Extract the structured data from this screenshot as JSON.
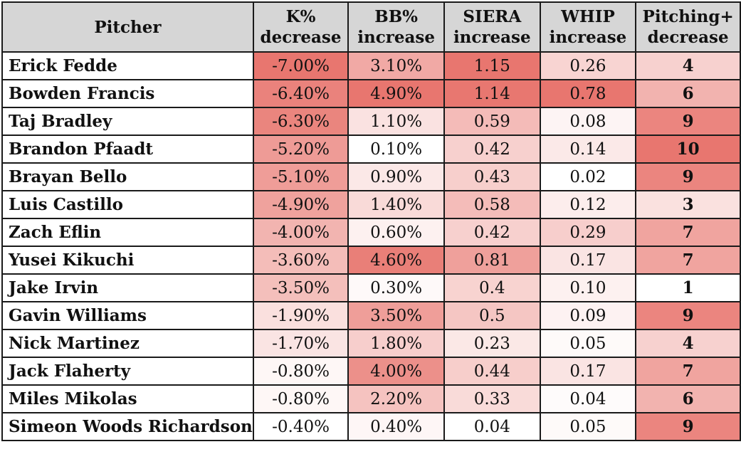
{
  "chart_data": {
    "type": "table",
    "columns": [
      {
        "key": "pitcher",
        "label_lines": [
          "Pitcher"
        ]
      },
      {
        "key": "k_pct_decrease",
        "label_lines": [
          "K%",
          "decrease"
        ]
      },
      {
        "key": "bb_pct_increase",
        "label_lines": [
          "BB%",
          "increase"
        ]
      },
      {
        "key": "siera_increase",
        "label_lines": [
          "SIERA",
          "increase"
        ]
      },
      {
        "key": "whip_increase",
        "label_lines": [
          "WHIP",
          "increase"
        ]
      },
      {
        "key": "pitching_plus_decrease",
        "label_lines": [
          "Pitching+",
          "decrease"
        ]
      }
    ],
    "rows": [
      {
        "pitcher": "Erick Fedde",
        "k_pct_decrease": "-7.00%",
        "bb_pct_increase": "3.10%",
        "siera_increase": "1.15",
        "whip_increase": "0.26",
        "pitching_plus_decrease": "4"
      },
      {
        "pitcher": "Bowden Francis",
        "k_pct_decrease": "-6.40%",
        "bb_pct_increase": "4.90%",
        "siera_increase": "1.14",
        "whip_increase": "0.78",
        "pitching_plus_decrease": "6"
      },
      {
        "pitcher": "Taj Bradley",
        "k_pct_decrease": "-6.30%",
        "bb_pct_increase": "1.10%",
        "siera_increase": "0.59",
        "whip_increase": "0.08",
        "pitching_plus_decrease": "9"
      },
      {
        "pitcher": "Brandon Pfaadt",
        "k_pct_decrease": "-5.20%",
        "bb_pct_increase": "0.10%",
        "siera_increase": "0.42",
        "whip_increase": "0.14",
        "pitching_plus_decrease": "10"
      },
      {
        "pitcher": "Brayan Bello",
        "k_pct_decrease": "-5.10%",
        "bb_pct_increase": "0.90%",
        "siera_increase": "0.43",
        "whip_increase": "0.02",
        "pitching_plus_decrease": "9"
      },
      {
        "pitcher": "Luis Castillo",
        "k_pct_decrease": "-4.90%",
        "bb_pct_increase": "1.40%",
        "siera_increase": "0.58",
        "whip_increase": "0.12",
        "pitching_plus_decrease": "3"
      },
      {
        "pitcher": "Zach Eflin",
        "k_pct_decrease": "-4.00%",
        "bb_pct_increase": "0.60%",
        "siera_increase": "0.42",
        "whip_increase": "0.29",
        "pitching_plus_decrease": "7"
      },
      {
        "pitcher": "Yusei Kikuchi",
        "k_pct_decrease": "-3.60%",
        "bb_pct_increase": "4.60%",
        "siera_increase": "0.81",
        "whip_increase": "0.17",
        "pitching_plus_decrease": "7"
      },
      {
        "pitcher": "Jake Irvin",
        "k_pct_decrease": "-3.50%",
        "bb_pct_increase": "0.30%",
        "siera_increase": "0.4",
        "whip_increase": "0.10",
        "pitching_plus_decrease": "1"
      },
      {
        "pitcher": "Gavin Williams",
        "k_pct_decrease": "-1.90%",
        "bb_pct_increase": "3.50%",
        "siera_increase": "0.5",
        "whip_increase": "0.09",
        "pitching_plus_decrease": "9"
      },
      {
        "pitcher": "Nick Martinez",
        "k_pct_decrease": "-1.70%",
        "bb_pct_increase": "1.80%",
        "siera_increase": "0.23",
        "whip_increase": "0.05",
        "pitching_plus_decrease": "4"
      },
      {
        "pitcher": "Jack Flaherty",
        "k_pct_decrease": "-0.80%",
        "bb_pct_increase": "4.00%",
        "siera_increase": "0.44",
        "whip_increase": "0.17",
        "pitching_plus_decrease": "7"
      },
      {
        "pitcher": "Miles Mikolas",
        "k_pct_decrease": "-0.80%",
        "bb_pct_increase": "2.20%",
        "siera_increase": "0.33",
        "whip_increase": "0.04",
        "pitching_plus_decrease": "6"
      },
      {
        "pitcher": "Simeon Woods Richardson",
        "k_pct_decrease": "-0.40%",
        "bb_pct_increase": "0.40%",
        "siera_increase": "0.04",
        "whip_increase": "0.05",
        "pitching_plus_decrease": "9"
      }
    ],
    "color_scale": {
      "low": "#ffffff",
      "high": "#e8766f"
    },
    "header_background": "#d6d6d6"
  }
}
